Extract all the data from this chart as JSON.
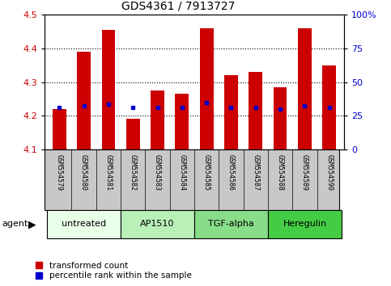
{
  "title": "GDS4361 / 7913727",
  "samples": [
    "GSM554579",
    "GSM554580",
    "GSM554581",
    "GSM554582",
    "GSM554583",
    "GSM554584",
    "GSM554585",
    "GSM554586",
    "GSM554587",
    "GSM554588",
    "GSM554589",
    "GSM554590"
  ],
  "red_values": [
    4.22,
    4.39,
    4.455,
    4.19,
    4.275,
    4.265,
    4.46,
    4.32,
    4.33,
    4.285,
    4.46,
    4.35
  ],
  "blue_values": [
    4.225,
    4.23,
    4.235,
    4.225,
    4.225,
    4.225,
    4.24,
    4.225,
    4.225,
    4.22,
    4.23,
    4.225
  ],
  "bar_bottom": 4.1,
  "ylim_left": [
    4.1,
    4.5
  ],
  "ylim_right": [
    0,
    100
  ],
  "yticks_left": [
    4.1,
    4.2,
    4.3,
    4.4,
    4.5
  ],
  "yticks_right": [
    0,
    25,
    50,
    75,
    100
  ],
  "ytick_labels_right": [
    "0",
    "25",
    "50",
    "75",
    "100%"
  ],
  "agents": [
    {
      "label": "untreated",
      "start": 0,
      "end": 3,
      "color": "#e8ffe8"
    },
    {
      "label": "AP1510",
      "start": 3,
      "end": 6,
      "color": "#b8f0b8"
    },
    {
      "label": "TGF-alpha",
      "start": 6,
      "end": 9,
      "color": "#88dd88"
    },
    {
      "label": "Heregulin",
      "start": 9,
      "end": 12,
      "color": "#44cc44"
    }
  ],
  "agent_label": "agent",
  "red_color": "#cc0000",
  "blue_color": "#0000cc",
  "bar_width": 0.55,
  "legend_red": "transformed count",
  "legend_blue": "percentile rank within the sample",
  "xtick_bg_color": "#c8c8c8",
  "grid_color": "black"
}
